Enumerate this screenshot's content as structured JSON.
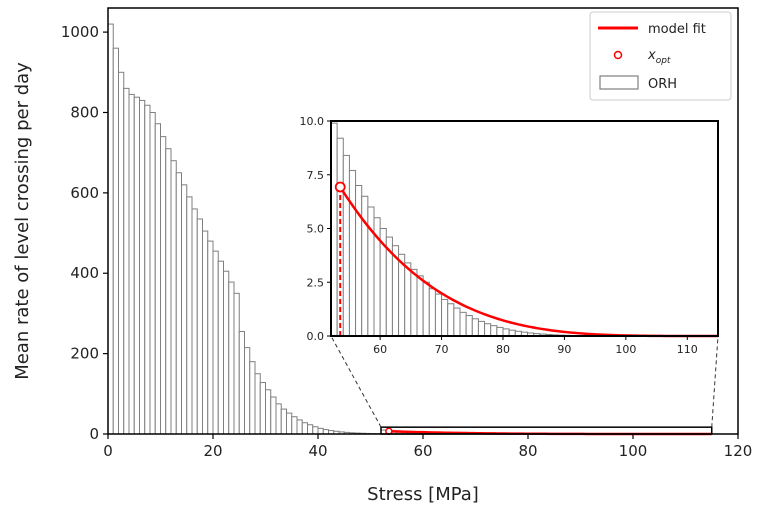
{
  "chart_data": {
    "type": "bar",
    "title": "",
    "xlabel": "Stress [MPa]",
    "ylabel": "Mean rate of level crossing per day",
    "xlim": [
      0,
      120
    ],
    "ylim": [
      0,
      1060
    ],
    "xticks": [
      0,
      20,
      40,
      60,
      80,
      100,
      120
    ],
    "yticks": [
      0,
      200,
      400,
      600,
      800,
      1000
    ],
    "grid": false,
    "legend_position": "top-right",
    "legend": [
      "model fit",
      "x_opt",
      "ORH"
    ],
    "legend_x_opt_base": "x",
    "legend_x_opt_sub": "opt",
    "histogram": {
      "name": "ORH",
      "bin_width": 1,
      "bin_start": 0,
      "values": [
        1020,
        960,
        900,
        860,
        845,
        838,
        830,
        818,
        800,
        772,
        740,
        710,
        680,
        650,
        620,
        590,
        560,
        535,
        505,
        480,
        455,
        430,
        405,
        378,
        350,
        255,
        215,
        180,
        150,
        128,
        110,
        92,
        75,
        62,
        52,
        43,
        35,
        28,
        23,
        18,
        14,
        11,
        8.5,
        6.8,
        5.2,
        4,
        3,
        2.3,
        1.8,
        1.4,
        1.1,
        0.85,
        9.9,
        9.2,
        8.4,
        7.7,
        7.0,
        6.5,
        6.0,
        5.5,
        5.0,
        4.6,
        4.2,
        3.8,
        3.4,
        3.1,
        2.8,
        2.5,
        2.2,
        1.95,
        1.7,
        1.5,
        1.3,
        1.1,
        0.95,
        0.8,
        0.68,
        0.57,
        0.48,
        0.4,
        0.33,
        0.27,
        0.22,
        0.18,
        0.14,
        0.11,
        0.09,
        0.07,
        0.05,
        0.04,
        0.03,
        0.02,
        0.015,
        0.01,
        0.008,
        0.006,
        0.004,
        0.003,
        0.002,
        0.0015,
        0.001,
        0.0008,
        0.0005,
        0.0004,
        0.0003,
        0.0002,
        0.0001,
        0.0001,
        0.0001,
        0.0001,
        0.0001,
        0.0001
      ]
    },
    "model_fit": {
      "name": "model fit",
      "color": "#ff0000",
      "x_start": 53.5,
      "x_end": 115,
      "y_start": 6.93,
      "exponent": 4
    },
    "x_opt": {
      "name": "x_opt",
      "x": 53.5,
      "y": 6.93,
      "color": "#ff0000"
    },
    "inset": {
      "xlim": [
        52,
        115
      ],
      "ylim": [
        0,
        10
      ],
      "xticks": [
        60,
        70,
        80,
        90,
        100,
        110
      ],
      "yticks": [
        0.0,
        2.5,
        5.0,
        7.5,
        10.0
      ],
      "ytick_labels": [
        "0.0",
        "2.5",
        "5.0",
        "7.5",
        "10.0"
      ],
      "zoom_region": {
        "x": [
          52,
          115
        ],
        "y": [
          0,
          17
        ]
      }
    },
    "colors": {
      "bar_edge": "#7f7f7f",
      "fit": "#ff0000",
      "axes": "#000000"
    }
  }
}
